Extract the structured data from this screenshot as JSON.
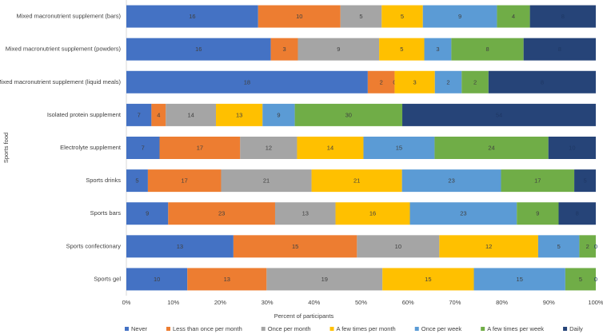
{
  "chart_data": {
    "type": "bar",
    "orientation": "horizontal",
    "stacking": "percent",
    "xlabel": "Percent of participants",
    "ylabel": "Sports food",
    "categories": [
      "Mixed macronutrient supplement (bars)",
      "Mixed macronutrient supplement (powders)",
      "Mixed macronutrient supplement (liquid meals)",
      "Isolated protein supplement",
      "Electrolyte supplement",
      "Sports drinks",
      "Sports bars",
      "Sports confectionary",
      "Sports gel"
    ],
    "series": [
      {
        "name": "Never",
        "color": "#4472c4",
        "values": [
          16,
          16,
          18,
          7,
          7,
          5,
          9,
          13,
          10
        ]
      },
      {
        "name": "Less than once per month",
        "color": "#ed7d31",
        "values": [
          10,
          3,
          2,
          4,
          17,
          17,
          23,
          15,
          13
        ]
      },
      {
        "name": "Once per month",
        "color": "#a5a5a5",
        "values": [
          5,
          9,
          0,
          14,
          12,
          21,
          13,
          10,
          19
        ]
      },
      {
        "name": "A few times per month",
        "color": "#ffc000",
        "values": [
          5,
          5,
          3,
          13,
          14,
          21,
          16,
          12,
          15
        ]
      },
      {
        "name": "Once per week",
        "color": "#5b9bd5",
        "values": [
          9,
          3,
          2,
          9,
          15,
          23,
          23,
          5,
          15
        ]
      },
      {
        "name": "A few times per week",
        "color": "#70ad47",
        "values": [
          4,
          8,
          2,
          30,
          24,
          17,
          9,
          2,
          5
        ]
      },
      {
        "name": "Daily",
        "color": "#264478",
        "values": [
          8,
          8,
          8,
          54,
          10,
          5,
          8,
          0,
          0
        ]
      }
    ],
    "xlim": [
      0,
      100
    ],
    "xticks": [
      {
        "value": 0,
        "label": "0%"
      },
      {
        "value": 10,
        "label": "10%"
      },
      {
        "value": 20,
        "label": "20%"
      },
      {
        "value": 30,
        "label": "30%"
      },
      {
        "value": 40,
        "label": "40%"
      },
      {
        "value": 50,
        "label": "50%"
      },
      {
        "value": 60,
        "label": "60%"
      },
      {
        "value": 70,
        "label": "70%"
      },
      {
        "value": 80,
        "label": "80%"
      },
      {
        "value": 90,
        "label": "90%"
      },
      {
        "value": 100,
        "label": "100%"
      }
    ],
    "legend": "bottom"
  }
}
